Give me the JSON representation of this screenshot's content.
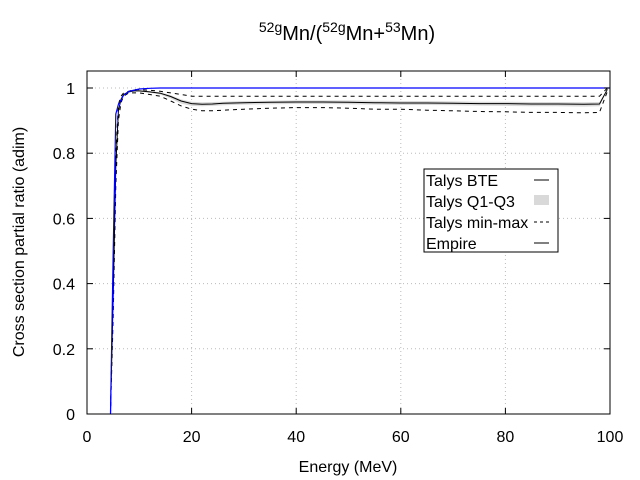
{
  "chart_data": {
    "type": "line",
    "title": {
      "base": "52g",
      "text1": "Mn/(",
      "sup2": "52g",
      "text2": "Mn+",
      "sup3": "53",
      "text3": "Mn)"
    },
    "xlabel": "Energy (MeV)",
    "ylabel": "Cross section partial ratio (adim)",
    "xlim": [
      0,
      100
    ],
    "ylim": [
      0,
      1.05
    ],
    "xticks": [
      0,
      20,
      40,
      60,
      80,
      100
    ],
    "yticks": [
      0,
      0.2,
      0.4,
      0.6,
      0.8,
      1
    ],
    "ytick_labels": [
      "0",
      "0.2",
      "0.4",
      "0.6",
      "0.8",
      "1"
    ],
    "grid": true,
    "legend_position": "center-right",
    "series": [
      {
        "name": "Talys min-max",
        "style": "dashed",
        "color": "#000000",
        "upper": {
          "x": [
            4.5,
            5,
            5.5,
            6,
            6.5,
            7,
            8,
            9,
            10,
            12,
            14,
            16,
            18,
            20,
            22,
            24,
            26,
            30,
            35,
            40,
            45,
            50,
            55,
            60,
            65,
            70,
            75,
            80,
            85,
            90,
            95,
            98,
            99.5
          ],
          "y": [
            0.02,
            0.4,
            0.8,
            0.95,
            0.975,
            0.985,
            0.99,
            0.995,
            0.995,
            0.993,
            0.99,
            0.985,
            0.98,
            0.975,
            0.975,
            0.975,
            0.975,
            0.975,
            0.975,
            0.975,
            0.975,
            0.975,
            0.975,
            0.975,
            0.975,
            0.975,
            0.975,
            0.975,
            0.975,
            0.975,
            0.975,
            0.975,
            1.0
          ]
        },
        "lower": {
          "x": [
            4.5,
            5,
            5.5,
            6,
            6.5,
            7,
            8,
            9,
            10,
            12,
            14,
            16,
            18,
            20,
            22,
            24,
            26,
            30,
            35,
            40,
            45,
            50,
            55,
            60,
            65,
            70,
            75,
            80,
            85,
            90,
            95,
            98,
            99.5
          ],
          "y": [
            0.0,
            0.3,
            0.7,
            0.9,
            0.955,
            0.975,
            0.985,
            0.985,
            0.985,
            0.98,
            0.975,
            0.96,
            0.945,
            0.935,
            0.93,
            0.93,
            0.932,
            0.935,
            0.938,
            0.94,
            0.94,
            0.938,
            0.935,
            0.935,
            0.932,
            0.93,
            0.928,
            0.927,
            0.925,
            0.925,
            0.924,
            0.925,
            0.99
          ]
        }
      },
      {
        "name": "Talys Q1-Q3",
        "style": "band",
        "color": "#d9d9d9",
        "upper": {
          "x": [
            4.5,
            5,
            5.5,
            6,
            6.5,
            7,
            8,
            9,
            10,
            12,
            14,
            16,
            18,
            20,
            22,
            24,
            26,
            30,
            35,
            40,
            45,
            50,
            55,
            60,
            65,
            70,
            75,
            80,
            85,
            90,
            95,
            98,
            99.5
          ],
          "y": [
            0.01,
            0.38,
            0.77,
            0.935,
            0.97,
            0.982,
            0.99,
            0.993,
            0.993,
            0.99,
            0.987,
            0.978,
            0.965,
            0.958,
            0.956,
            0.957,
            0.958,
            0.96,
            0.961,
            0.962,
            0.962,
            0.962,
            0.961,
            0.96,
            0.96,
            0.959,
            0.958,
            0.958,
            0.957,
            0.957,
            0.956,
            0.957,
            0.998
          ]
        },
        "lower": {
          "x": [
            4.5,
            5,
            5.5,
            6,
            6.5,
            7,
            8,
            9,
            10,
            12,
            14,
            16,
            18,
            20,
            22,
            24,
            26,
            30,
            35,
            40,
            45,
            50,
            55,
            60,
            65,
            70,
            75,
            80,
            85,
            90,
            95,
            98,
            99.5
          ],
          "y": [
            0.005,
            0.33,
            0.74,
            0.92,
            0.96,
            0.977,
            0.986,
            0.989,
            0.989,
            0.985,
            0.98,
            0.968,
            0.952,
            0.945,
            0.944,
            0.945,
            0.947,
            0.949,
            0.95,
            0.951,
            0.951,
            0.95,
            0.949,
            0.948,
            0.948,
            0.947,
            0.946,
            0.945,
            0.944,
            0.944,
            0.943,
            0.944,
            0.994
          ]
        }
      },
      {
        "name": "Talys BTE",
        "style": "solid",
        "color": "#000000",
        "x": [
          4.5,
          5,
          5.5,
          6,
          6.5,
          7,
          8,
          9,
          10,
          12,
          14,
          16,
          18,
          20,
          22,
          24,
          26,
          30,
          35,
          40,
          45,
          50,
          55,
          60,
          65,
          70,
          75,
          80,
          85,
          90,
          95,
          98,
          99.5
        ],
        "y": [
          0.008,
          0.36,
          0.76,
          0.93,
          0.965,
          0.98,
          0.988,
          0.991,
          0.991,
          0.988,
          0.984,
          0.974,
          0.96,
          0.952,
          0.95,
          0.951,
          0.953,
          0.955,
          0.956,
          0.957,
          0.957,
          0.956,
          0.955,
          0.954,
          0.954,
          0.953,
          0.952,
          0.952,
          0.951,
          0.951,
          0.95,
          0.951,
          0.996
        ]
      },
      {
        "name": "Empire",
        "style": "solid",
        "color": "#0000ff",
        "x": [
          4.5,
          5,
          5.5,
          6,
          7,
          8,
          10,
          12,
          14,
          16,
          18,
          20,
          40,
          60,
          80,
          100
        ],
        "y": [
          0.0,
          0.5,
          0.92,
          0.95,
          0.978,
          0.99,
          0.997,
          0.999,
          1.0,
          1.0,
          1.0,
          1.0,
          1.0,
          1.0,
          1.0,
          1.0
        ]
      }
    ]
  }
}
